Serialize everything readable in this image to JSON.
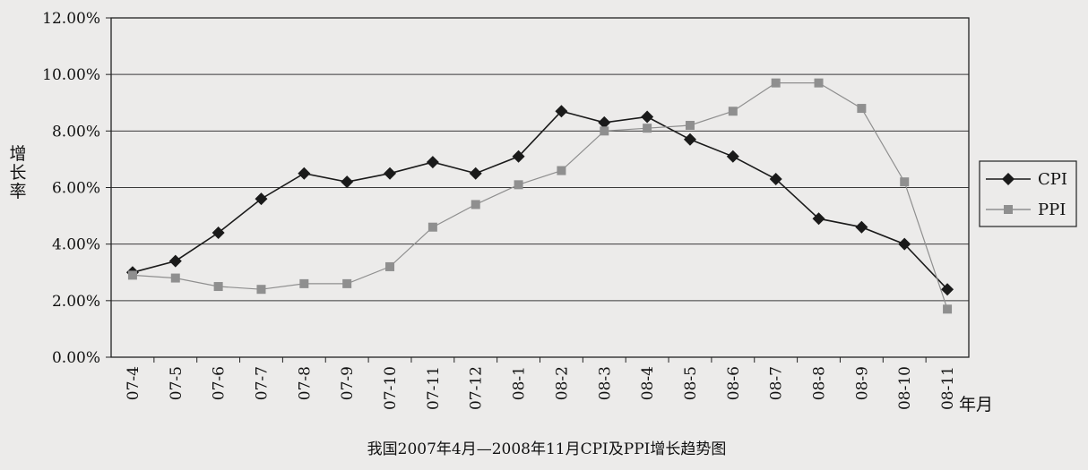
{
  "chart_data": {
    "type": "line",
    "title": "我国2007年4月—2008年11月CPI及PPI增长趋势图",
    "xlabel": "年月",
    "ylabel": "增长率",
    "categories": [
      "07-4",
      "07-5",
      "07-6",
      "07-7",
      "07-8",
      "07-9",
      "07-10",
      "07-11",
      "07-12",
      "08-1",
      "08-2",
      "08-3",
      "08-4",
      "08-5",
      "08-6",
      "08-7",
      "08-8",
      "08-9",
      "08-10",
      "08-11"
    ],
    "y_ticks": [
      "0.00%",
      "2.00%",
      "4.00%",
      "6.00%",
      "8.00%",
      "10.00%",
      "12.00%"
    ],
    "ylim": [
      0,
      12
    ],
    "grid": true,
    "legend_position": "right",
    "series": [
      {
        "name": "CPI",
        "marker": "diamond",
        "color": "#1a1a1a",
        "values": [
          3.0,
          3.4,
          4.4,
          5.6,
          6.5,
          6.2,
          6.5,
          6.9,
          6.5,
          7.1,
          8.7,
          8.3,
          8.5,
          7.7,
          7.1,
          6.3,
          4.9,
          4.6,
          4.0,
          2.4
        ]
      },
      {
        "name": "PPI",
        "marker": "square",
        "color": "#8f8f8f",
        "values": [
          2.9,
          2.8,
          2.5,
          2.4,
          2.6,
          2.6,
          3.2,
          4.6,
          5.4,
          6.1,
          6.6,
          8.0,
          8.1,
          8.2,
          8.7,
          9.7,
          9.7,
          8.8,
          6.2,
          1.7
        ]
      }
    ]
  }
}
